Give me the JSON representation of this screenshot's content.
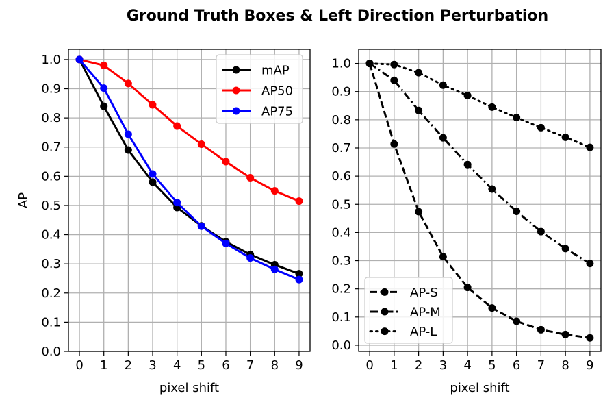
{
  "figure": {
    "title": "Ground Truth Boxes  &  Left Direction Perturbation"
  },
  "chart_data": [
    {
      "type": "line",
      "xlabel": "pixel shift",
      "ylabel": "AP",
      "x": [
        0,
        1,
        2,
        3,
        4,
        5,
        6,
        7,
        8,
        9
      ],
      "xlim": [
        -0.45,
        9.45
      ],
      "ylim": [
        0.0,
        1.035
      ],
      "yticks": [
        0.0,
        0.1,
        0.2,
        0.3,
        0.4,
        0.5,
        0.6,
        0.7,
        0.8,
        0.9,
        1.0
      ],
      "grid": true,
      "legend_position": "top-right",
      "series": [
        {
          "name": "mAP",
          "color": "#000000",
          "dash": "solid",
          "values": [
            1.0,
            0.84,
            0.69,
            0.58,
            0.493,
            0.43,
            0.376,
            0.332,
            0.297,
            0.266
          ]
        },
        {
          "name": "AP50",
          "color": "#ff0000",
          "dash": "solid",
          "values": [
            1.0,
            0.98,
            0.918,
            0.845,
            0.772,
            0.71,
            0.65,
            0.595,
            0.55,
            0.515
          ]
        },
        {
          "name": "AP75",
          "color": "#0000ff",
          "dash": "solid",
          "values": [
            1.0,
            0.902,
            0.744,
            0.608,
            0.51,
            0.429,
            0.37,
            0.32,
            0.281,
            0.246
          ]
        }
      ]
    },
    {
      "type": "line",
      "xlabel": "pixel shift",
      "ylabel": "",
      "x": [
        0,
        1,
        2,
        3,
        4,
        5,
        6,
        7,
        8,
        9
      ],
      "xlim": [
        -0.45,
        9.45
      ],
      "ylim": [
        -0.022,
        1.05
      ],
      "yticks": [
        0.0,
        0.1,
        0.2,
        0.3,
        0.4,
        0.5,
        0.6,
        0.7,
        0.8,
        0.9,
        1.0
      ],
      "grid": true,
      "legend_position": "bottom-left",
      "series": [
        {
          "name": "AP-S",
          "color": "#000000",
          "dash": "dashed",
          "values": [
            1.0,
            0.714,
            0.474,
            0.314,
            0.205,
            0.132,
            0.085,
            0.055,
            0.038,
            0.026
          ]
        },
        {
          "name": "AP-M",
          "color": "#000000",
          "dash": "dashdot",
          "values": [
            1.0,
            0.94,
            0.833,
            0.736,
            0.641,
            0.554,
            0.475,
            0.403,
            0.343,
            0.29
          ]
        },
        {
          "name": "AP-L",
          "color": "#000000",
          "dash": "dotted",
          "values": [
            1.0,
            0.996,
            0.967,
            0.923,
            0.886,
            0.845,
            0.808,
            0.772,
            0.738,
            0.702
          ]
        }
      ]
    }
  ]
}
